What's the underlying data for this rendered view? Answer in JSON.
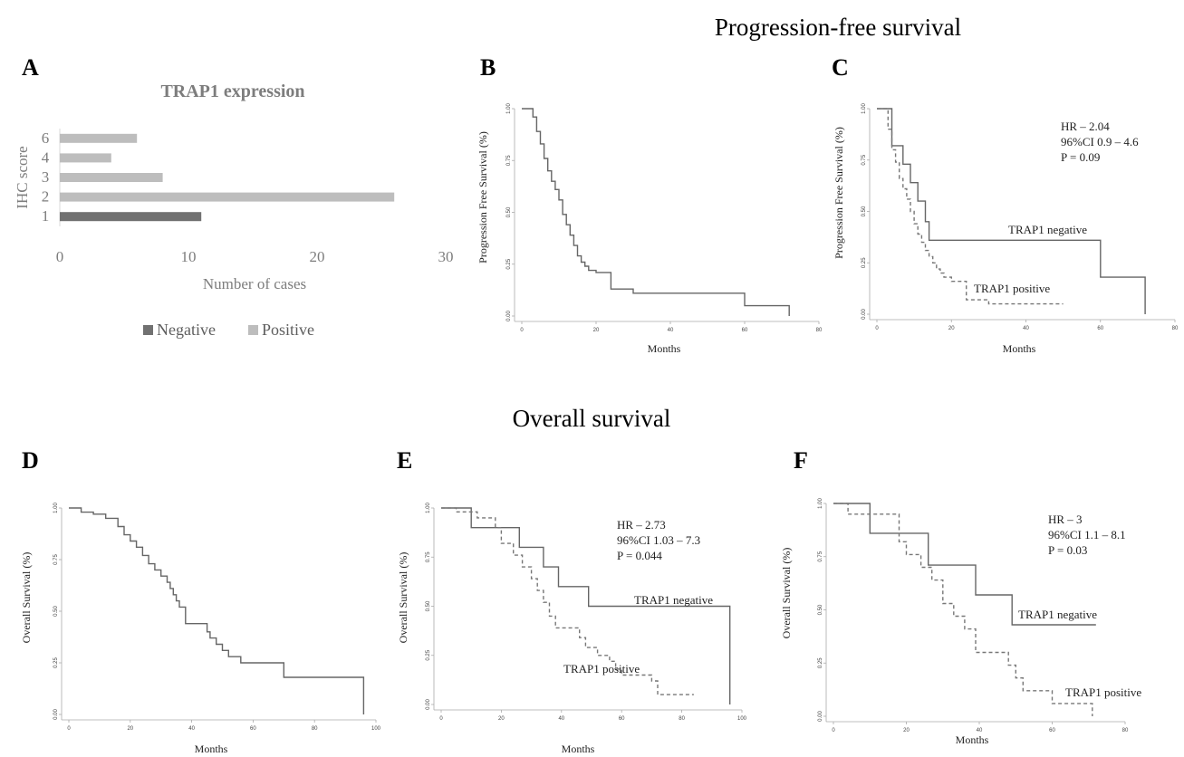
{
  "figure": {
    "pfs_heading": "Progression-free survival",
    "os_heading": "Overall survival"
  },
  "colors": {
    "negative": "#717171",
    "positive": "#bdbdbd",
    "axis": "#bbbbbb",
    "curve": "#666666"
  },
  "chart_data": [
    {
      "panel": "A",
      "type": "bar",
      "orientation": "horizontal",
      "title": "TRAP1 expression",
      "xlabel": "Number of cases",
      "ylabel": "IHC score",
      "xlim": [
        0,
        30
      ],
      "x_ticks": [
        "0",
        "10",
        "20",
        "30"
      ],
      "categories": [
        "1",
        "2",
        "3",
        "4",
        "6"
      ],
      "series": [
        {
          "name": "Negative",
          "values": [
            11,
            null,
            null,
            null,
            null
          ],
          "color": "#717171"
        },
        {
          "name": "Positive",
          "values": [
            null,
            26,
            8,
            4,
            6
          ],
          "color": "#bdbdbd"
        }
      ],
      "legend": "bottom",
      "grid": false
    },
    {
      "panel": "B",
      "type": "line",
      "step": true,
      "xlabel": "Months",
      "ylabel": "Progression Free Survival (%)",
      "xlim": [
        0,
        80
      ],
      "ylim": [
        0,
        1
      ],
      "x_ticks": [
        "0",
        "20",
        "40",
        "60",
        "80"
      ],
      "y_ticks": [
        "0.00",
        "0.25",
        "0.50",
        "0.75",
        "1.00"
      ],
      "series": [
        {
          "style": "solid",
          "x": [
            0,
            3,
            4,
            5,
            6,
            7,
            8,
            9,
            10,
            11,
            12,
            13,
            14,
            15,
            16,
            17,
            18,
            20,
            24,
            30,
            60,
            72
          ],
          "y": [
            1.0,
            0.96,
            0.89,
            0.83,
            0.76,
            0.7,
            0.65,
            0.61,
            0.56,
            0.49,
            0.44,
            0.39,
            0.34,
            0.29,
            0.26,
            0.24,
            0.22,
            0.21,
            0.13,
            0.11,
            0.05,
            0.0
          ]
        }
      ]
    },
    {
      "panel": "C",
      "type": "line",
      "step": true,
      "xlabel": "Months",
      "ylabel": "Progression Free Survival (%)",
      "xlim": [
        0,
        80
      ],
      "ylim": [
        0,
        1
      ],
      "x_ticks": [
        "0",
        "20",
        "40",
        "60",
        "80"
      ],
      "y_ticks": [
        "0.00",
        "0.25",
        "0.50",
        "0.75",
        "1.00"
      ],
      "annotation": [
        "HR – 2.04",
        "96%CI 0.9 – 4.6",
        "P = 0.09"
      ],
      "series": [
        {
          "name": "TRAP1 negative",
          "style": "solid",
          "x": [
            0,
            4,
            7,
            9,
            11,
            13,
            14,
            15,
            60,
            72
          ],
          "y": [
            1.0,
            0.82,
            0.73,
            0.64,
            0.55,
            0.45,
            0.36,
            0.36,
            0.18,
            0.0
          ]
        },
        {
          "name": "TRAP1 positive",
          "style": "dashed",
          "x": [
            0,
            3,
            4,
            5,
            6,
            7,
            8,
            9,
            10,
            11,
            12,
            13,
            14,
            15,
            16,
            17,
            18,
            20,
            24,
            30,
            50
          ],
          "y": [
            1.0,
            0.9,
            0.8,
            0.74,
            0.66,
            0.61,
            0.56,
            0.5,
            0.44,
            0.39,
            0.35,
            0.31,
            0.28,
            0.25,
            0.22,
            0.2,
            0.18,
            0.16,
            0.07,
            0.05,
            0.05
          ]
        }
      ]
    },
    {
      "panel": "D",
      "type": "line",
      "step": true,
      "xlabel": "Months",
      "ylabel": "Overall Survival (%)",
      "xlim": [
        0,
        100
      ],
      "ylim": [
        0,
        1
      ],
      "x_ticks": [
        "0",
        "20",
        "40",
        "60",
        "80",
        "100"
      ],
      "y_ticks": [
        "0.00",
        "0.25",
        "0.50",
        "0.75",
        "1.00"
      ],
      "series": [
        {
          "style": "solid",
          "x": [
            0,
            4,
            8,
            12,
            16,
            18,
            20,
            22,
            24,
            26,
            28,
            30,
            32,
            33,
            34,
            35,
            36,
            38,
            45,
            46,
            48,
            50,
            52,
            56,
            60,
            70,
            96
          ],
          "y": [
            1.0,
            0.98,
            0.97,
            0.95,
            0.91,
            0.87,
            0.84,
            0.81,
            0.77,
            0.73,
            0.7,
            0.67,
            0.64,
            0.61,
            0.58,
            0.55,
            0.52,
            0.44,
            0.4,
            0.37,
            0.34,
            0.31,
            0.28,
            0.25,
            0.25,
            0.18,
            0.0
          ]
        }
      ]
    },
    {
      "panel": "E",
      "type": "line",
      "step": true,
      "xlabel": "Months",
      "ylabel": "Overall Survival (%)",
      "xlim": [
        0,
        100
      ],
      "ylim": [
        0,
        1
      ],
      "x_ticks": [
        "0",
        "20",
        "40",
        "60",
        "80",
        "100"
      ],
      "y_ticks": [
        "0.00",
        "0.25",
        "0.50",
        "0.75",
        "1.00"
      ],
      "annotation": [
        "HR – 2.73",
        "96%CI 1.03 – 7.3",
        "P = 0.044"
      ],
      "series": [
        {
          "name": "TRAP1 negative",
          "style": "solid",
          "x": [
            0,
            10,
            26,
            34,
            39,
            49,
            96
          ],
          "y": [
            1.0,
            0.9,
            0.8,
            0.7,
            0.6,
            0.5,
            0.0
          ]
        },
        {
          "name": "TRAP1 positive",
          "style": "dashed",
          "x": [
            0,
            5,
            12,
            18,
            20,
            24,
            27,
            30,
            32,
            34,
            36,
            38,
            46,
            48,
            52,
            56,
            58,
            60,
            70,
            72,
            84
          ],
          "y": [
            1.0,
            0.98,
            0.95,
            0.9,
            0.82,
            0.76,
            0.7,
            0.64,
            0.58,
            0.52,
            0.45,
            0.39,
            0.34,
            0.29,
            0.25,
            0.22,
            0.18,
            0.15,
            0.12,
            0.05,
            0.05
          ]
        }
      ]
    },
    {
      "panel": "F",
      "type": "line",
      "step": true,
      "xlabel": "Months",
      "ylabel": "Overall Survival (%)",
      "xlim": [
        0,
        80
      ],
      "ylim": [
        0,
        1
      ],
      "x_ticks": [
        "0",
        "20",
        "40",
        "60",
        "80"
      ],
      "y_ticks": [
        "0.00",
        "0.25",
        "0.50",
        "0.75",
        "1.00"
      ],
      "annotation": [
        "HR – 3",
        "96%CI 1.1 – 8.1",
        "P = 0.03"
      ],
      "series": [
        {
          "name": "TRAP1 negative",
          "style": "solid",
          "x": [
            0,
            10,
            26,
            39,
            49,
            72
          ],
          "y": [
            1.0,
            0.86,
            0.71,
            0.57,
            0.43,
            0.43
          ]
        },
        {
          "name": "TRAP1 positive",
          "style": "dashed",
          "x": [
            0,
            4,
            18,
            20,
            24,
            27,
            30,
            33,
            36,
            39,
            48,
            50,
            52,
            56,
            60,
            70,
            71
          ],
          "y": [
            1.0,
            0.95,
            0.82,
            0.76,
            0.7,
            0.64,
            0.53,
            0.47,
            0.41,
            0.3,
            0.24,
            0.18,
            0.12,
            0.12,
            0.06,
            0.06,
            0.0
          ]
        }
      ]
    }
  ]
}
